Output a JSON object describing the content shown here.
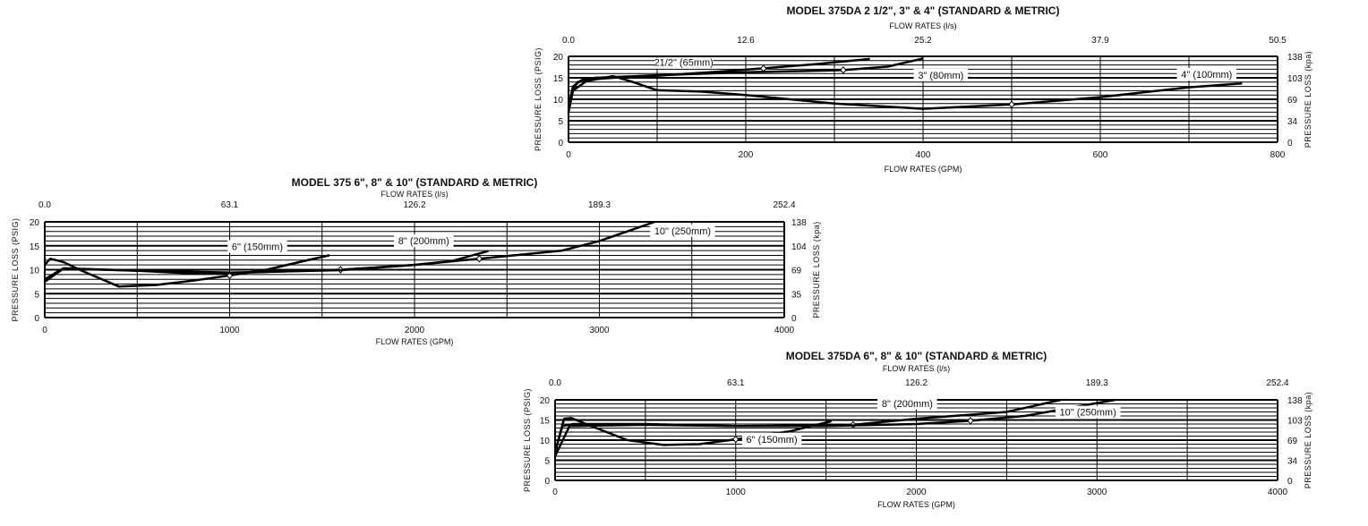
{
  "chart_data": [
    {
      "type": "line",
      "title": "MODEL 375DA 2 1/2\", 3\" & 4\" (STANDARD & METRIC)",
      "xlabel": "FLOW RATES (GPM)",
      "x2label": "FLOW RATES (l/s)",
      "ylabel": "PRESSURE LOSS (PSIG)",
      "y2label": "PRESSURE LOSS (kpa)",
      "xlim": [
        0,
        800
      ],
      "ylim": [
        0,
        20
      ],
      "x_ticks": [
        "0",
        "200",
        "400",
        "600",
        "800"
      ],
      "x2_ticks": [
        "0.0",
        "12.6",
        "25.2",
        "37.9",
        "50.5"
      ],
      "y_ticks": [
        "0",
        "5",
        "10",
        "15",
        "20"
      ],
      "y2_ticks": [
        "0",
        "34",
        "69",
        "103",
        "138"
      ],
      "grid": true,
      "series": [
        {
          "name": "21/2\" (65mm)",
          "label_at": [
            130,
            18
          ],
          "marker_x": 220,
          "points": [
            [
              0,
              8
            ],
            [
              5,
              13
            ],
            [
              15,
              14.5
            ],
            [
              50,
              15
            ],
            [
              100,
              15.5
            ],
            [
              160,
              16.3
            ],
            [
              220,
              17.2
            ],
            [
              280,
              18.2
            ],
            [
              340,
              19.4
            ]
          ]
        },
        {
          "name": "3\" (80mm)",
          "label_at": [
            420,
            15
          ],
          "marker_x": 310,
          "points": [
            [
              0,
              7
            ],
            [
              5,
              12
            ],
            [
              10,
              14
            ],
            [
              30,
              15
            ],
            [
              100,
              15.6
            ],
            [
              200,
              16.3
            ],
            [
              310,
              16.8
            ],
            [
              360,
              17.6
            ],
            [
              400,
              19.5
            ]
          ]
        },
        {
          "name": "4\" (100mm)",
          "label_at": [
            720,
            15.2
          ],
          "marker_x": 500,
          "points": [
            [
              0,
              9
            ],
            [
              5,
              12
            ],
            [
              20,
              14.2
            ],
            [
              50,
              15.4
            ],
            [
              70,
              14.2
            ],
            [
              100,
              12.1
            ],
            [
              150,
              11.8
            ],
            [
              200,
              11
            ],
            [
              300,
              9
            ],
            [
              400,
              7.8
            ],
            [
              500,
              8.8
            ],
            [
              600,
              10.5
            ],
            [
              700,
              12.8
            ],
            [
              760,
              13.7
            ]
          ]
        }
      ]
    },
    {
      "type": "line",
      "title": "MODEL 375 6\", 8\" & 10\" (STANDARD & METRIC)",
      "xlabel": "FLOW RATES (GPM)",
      "x2label": "FLOW RATES (l/s)",
      "ylabel": "PRESSURE LOSS (PSIG)",
      "y2label": "PRESSURE LOSS (kpa)",
      "xlim": [
        0,
        4000
      ],
      "ylim": [
        0,
        20
      ],
      "x_ticks": [
        "0",
        "1000",
        "2000",
        "3000",
        "4000"
      ],
      "x2_ticks": [
        "0.0",
        "63.1",
        "126.2",
        "189.3",
        "252.4"
      ],
      "y_ticks": [
        "0",
        "5",
        "10",
        "15",
        "20"
      ],
      "y2_ticks": [
        "0",
        "35",
        "69",
        "104",
        "138"
      ],
      "grid": true,
      "series": [
        {
          "name": "6\" (150mm)",
          "label_at": [
            1150,
            14.3
          ],
          "marker_x": 1000,
          "points": [
            [
              0,
              11
            ],
            [
              30,
              12.3
            ],
            [
              100,
              11.6
            ],
            [
              200,
              9.8
            ],
            [
              400,
              6.5
            ],
            [
              600,
              6.8
            ],
            [
              800,
              7.7
            ],
            [
              1000,
              8.8
            ],
            [
              1200,
              10
            ],
            [
              1400,
              11.8
            ],
            [
              1540,
              13
            ]
          ]
        },
        {
          "name": "8\" (200mm)",
          "label_at": [
            2050,
            15.5
          ],
          "marker_x": 1600,
          "points": [
            [
              0,
              7.5
            ],
            [
              100,
              10.2
            ],
            [
              500,
              9.8
            ],
            [
              800,
              9.2
            ],
            [
              1000,
              9.3
            ],
            [
              1600,
              10
            ],
            [
              2000,
              11
            ],
            [
              2200,
              11.8
            ],
            [
              2400,
              13.9
            ]
          ]
        },
        {
          "name": "10\" (250mm)",
          "label_at": [
            3450,
            17.6
          ],
          "marker_x": 2350,
          "points": [
            [
              0,
              8
            ],
            [
              100,
              10.3
            ],
            [
              500,
              9.8
            ],
            [
              1000,
              9.4
            ],
            [
              1600,
              9.9
            ],
            [
              2000,
              11
            ],
            [
              2350,
              12.3
            ],
            [
              2800,
              14
            ],
            [
              3000,
              16
            ],
            [
              3300,
              20
            ]
          ]
        }
      ]
    },
    {
      "type": "line",
      "title": "MODEL 375DA 6\", 8\" & 10\" (STANDARD & METRIC)",
      "xlabel": "FLOW RATES (GPM)",
      "x2label": "FLOW RATES (l/s)",
      "ylabel": "PRESSURE LOSS (PSIG)",
      "y2label": "PRESSURE LOSS (kpa)",
      "xlim": [
        0,
        4000
      ],
      "ylim": [
        0,
        20
      ],
      "x_ticks": [
        "0",
        "1000",
        "2000",
        "3000",
        "4000"
      ],
      "x2_ticks": [
        "0.0",
        "63.1",
        "126.2",
        "189.3",
        "252.4"
      ],
      "y_ticks": [
        "0",
        "5",
        "10",
        "15",
        "20"
      ],
      "y2_ticks": [
        "0",
        "34",
        "69",
        "103",
        "138"
      ],
      "grid": true,
      "series": [
        {
          "name": "6\" (150mm)",
          "label_at": [
            1200,
            9.6
          ],
          "marker_x": 1000,
          "points": [
            [
              0,
              7
            ],
            [
              50,
              15.3
            ],
            [
              90,
              15.5
            ],
            [
              200,
              13.5
            ],
            [
              400,
              10
            ],
            [
              600,
              8.8
            ],
            [
              800,
              9
            ],
            [
              1000,
              10.2
            ],
            [
              1300,
              12.2
            ],
            [
              1530,
              14.7
            ]
          ]
        },
        {
          "name": "8\" (200mm)",
          "label_at": [
            1950,
            18.5
          ],
          "marker_x": 1650,
          "points": [
            [
              0,
              7
            ],
            [
              40,
              13.5
            ],
            [
              100,
              14
            ],
            [
              500,
              14
            ],
            [
              1000,
              13.5
            ],
            [
              1650,
              13.8
            ],
            [
              2000,
              15.3
            ],
            [
              2500,
              17
            ],
            [
              2800,
              20
            ]
          ]
        },
        {
          "name": "10\" (250mm)",
          "label_at": [
            2950,
            16.3
          ],
          "marker_x": 2300,
          "points": [
            [
              0,
              6
            ],
            [
              80,
              13.5
            ],
            [
              500,
              13.8
            ],
            [
              1000,
              13.5
            ],
            [
              1500,
              13.5
            ],
            [
              2000,
              14
            ],
            [
              2300,
              14.8
            ],
            [
              2600,
              16
            ],
            [
              3100,
              20
            ]
          ]
        }
      ]
    }
  ]
}
